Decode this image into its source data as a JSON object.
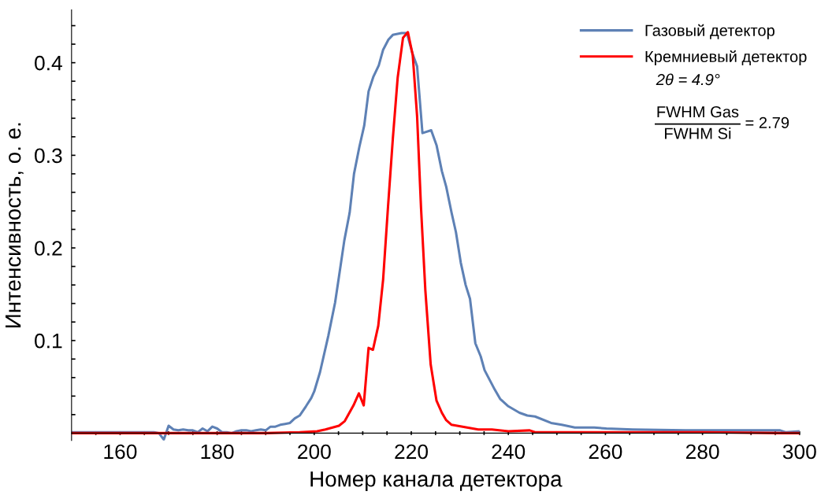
{
  "chart_data": {
    "type": "line",
    "xlabel": "Номер канала детектора",
    "ylabel": "Интенсивность, о. е.",
    "xlim": [
      150,
      300
    ],
    "ylim": [
      -0.008,
      0.457
    ],
    "xticks": [
      {
        "value": 155,
        "label": null
      },
      160,
      {
        "value": 165,
        "label": null
      },
      {
        "value": 170,
        "label": null
      },
      {
        "value": 175,
        "label": null
      },
      180,
      {
        "value": 185,
        "label": null
      },
      {
        "value": 190,
        "label": null
      },
      {
        "value": 195,
        "label": null
      },
      200,
      {
        "value": 205,
        "label": null
      },
      {
        "value": 210,
        "label": null
      },
      {
        "value": 215,
        "label": null
      },
      220,
      {
        "value": 225,
        "label": null
      },
      {
        "value": 230,
        "label": null
      },
      {
        "value": 235,
        "label": null
      },
      240,
      {
        "value": 245,
        "label": null
      },
      {
        "value": 250,
        "label": null
      },
      {
        "value": 255,
        "label": null
      },
      260,
      {
        "value": 265,
        "label": null
      },
      {
        "value": 270,
        "label": null
      },
      {
        "value": 275,
        "label": null
      },
      280,
      {
        "value": 285,
        "label": null
      },
      {
        "value": 290,
        "label": null
      },
      {
        "value": 295,
        "label": null
      },
      300
    ],
    "yticks": [
      {
        "value": 0.02,
        "label": null
      },
      {
        "value": 0.04,
        "label": null
      },
      {
        "value": 0.06,
        "label": null
      },
      {
        "value": 0.08,
        "label": null
      },
      0.1,
      {
        "value": 0.12,
        "label": null
      },
      {
        "value": 0.14,
        "label": null
      },
      {
        "value": 0.16,
        "label": null
      },
      {
        "value": 0.18,
        "label": null
      },
      0.2,
      {
        "value": 0.22,
        "label": null
      },
      {
        "value": 0.24,
        "label": null
      },
      {
        "value": 0.26,
        "label": null
      },
      {
        "value": 0.28,
        "label": null
      },
      0.3,
      {
        "value": 0.32,
        "label": null
      },
      {
        "value": 0.34,
        "label": null
      },
      {
        "value": 0.36,
        "label": null
      },
      {
        "value": 0.38,
        "label": null
      },
      0.4,
      {
        "value": 0.42,
        "label": null
      },
      {
        "value": 0.44,
        "label": null
      }
    ],
    "legend": "top right",
    "grid": false,
    "marker": "none",
    "line_style": "solid",
    "annotations": [
      "2θ = 4.9°",
      "FWHM Gas",
      "FWHM Si",
      "= 2.79"
    ],
    "series": [
      {
        "name": "Газовый детектор",
        "color": "#5e81b5",
        "x": [
          150,
          155,
          160,
          165,
          167,
          168,
          169,
          170,
          171,
          172,
          173,
          174,
          175,
          176,
          177,
          178,
          179,
          180,
          181,
          182,
          183,
          184,
          185,
          186,
          187,
          188,
          189,
          190,
          191,
          192,
          193,
          194,
          195,
          196,
          197,
          198.3,
          199.4,
          200,
          201.2,
          202.9,
          204.3,
          205.1,
          206.2,
          207.3,
          208.2,
          209.3,
          210.3,
          211.2,
          212.2,
          213.3,
          214.2,
          215.3,
          216.2,
          218,
          219.1,
          220.3,
          221.2,
          222.3,
          224.1,
          225.2,
          226.3,
          227.2,
          228.3,
          229.2,
          230.2,
          231.2,
          232.1,
          233.2,
          234.3,
          235.1,
          237.2,
          238.3,
          240,
          242.3,
          243.9,
          245.5,
          248.8,
          251,
          253.7,
          257.7,
          260.2,
          265.6,
          276.5,
          287.3,
          296,
          297.1,
          300
        ],
        "values": [
          0.001,
          0.001,
          0.001,
          0.001,
          0.001,
          0.0,
          -0.007,
          0.008,
          0.004,
          0.003,
          0.004,
          0.003,
          0.003,
          0.001,
          0.005,
          0.002,
          0.007,
          0.005,
          0.001,
          0.001,
          0.0,
          0.002,
          0.003,
          0.003,
          0.002,
          0.003,
          0.004,
          0.003,
          0.007,
          0.007,
          0.009,
          0.01,
          0.011,
          0.016,
          0.019,
          0.029,
          0.038,
          0.045,
          0.066,
          0.105,
          0.141,
          0.169,
          0.208,
          0.238,
          0.28,
          0.309,
          0.332,
          0.369,
          0.385,
          0.397,
          0.414,
          0.425,
          0.43,
          0.432,
          0.432,
          0.409,
          0.396,
          0.324,
          0.327,
          0.311,
          0.283,
          0.266,
          0.238,
          0.217,
          0.184,
          0.16,
          0.145,
          0.097,
          0.083,
          0.068,
          0.047,
          0.037,
          0.029,
          0.022,
          0.019,
          0.018,
          0.011,
          0.009,
          0.006,
          0.006,
          0.005,
          0.004,
          0.003,
          0.003,
          0.003,
          0.001,
          0.002
        ]
      },
      {
        "name": "Кремниевый детектор",
        "color": "#ff0000",
        "x": [
          150,
          160,
          170,
          180,
          190,
          197,
          200.6,
          202.3,
          205.1,
          206.3,
          208.1,
          209.2,
          210.2,
          211.2,
          212.1,
          213.2,
          214.2,
          215.2,
          216.2,
          217.2,
          218.3,
          219.3,
          220.3,
          221.2,
          222,
          222.9,
          224,
          225.2,
          226.3,
          227.2,
          228.3,
          231.5,
          233.8,
          236.6,
          240,
          244.4,
          245.5,
          260,
          280,
          296.6,
          300
        ],
        "values": [
          0.0,
          0.0,
          0.0,
          0.0,
          0.0,
          0.001,
          0.002,
          0.004,
          0.008,
          0.013,
          0.03,
          0.043,
          0.03,
          0.092,
          0.09,
          0.116,
          0.166,
          0.244,
          0.318,
          0.384,
          0.427,
          0.433,
          0.408,
          0.342,
          0.244,
          0.154,
          0.074,
          0.035,
          0.022,
          0.014,
          0.009,
          0.006,
          0.004,
          0.004,
          0.002,
          0.003,
          0.001,
          0.001,
          0.001,
          0.0,
          0.0
        ]
      }
    ]
  }
}
